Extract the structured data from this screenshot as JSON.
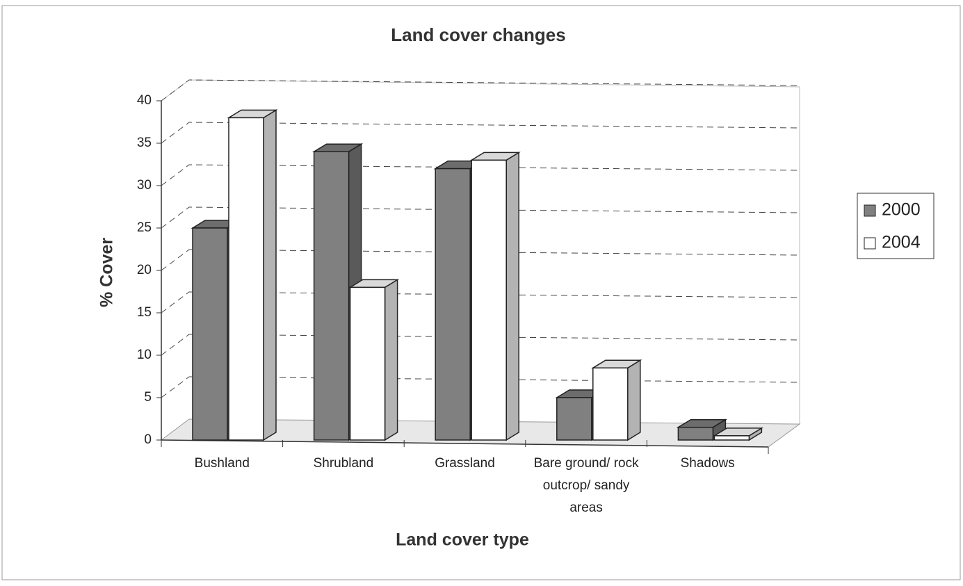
{
  "chart_data": {
    "type": "bar3d",
    "title": "Land cover changes",
    "xlabel": "Land cover type",
    "ylabel": "% Cover",
    "categories": [
      "Bushland",
      "Shrubland",
      "Grassland",
      "Bare ground/ rock outcrop/ sandy areas",
      "Shadows"
    ],
    "series": [
      {
        "name": "2000",
        "color": "#808080",
        "values": [
          25,
          34,
          32,
          5,
          1.5
        ]
      },
      {
        "name": "2004",
        "color": "#ffffff",
        "values": [
          38,
          18,
          33,
          8.5,
          0.5
        ]
      }
    ],
    "ylim": [
      0,
      40
    ],
    "yticks": [
      0,
      5,
      10,
      15,
      20,
      25,
      30,
      35,
      40
    ],
    "grid": true,
    "legend": "right"
  }
}
